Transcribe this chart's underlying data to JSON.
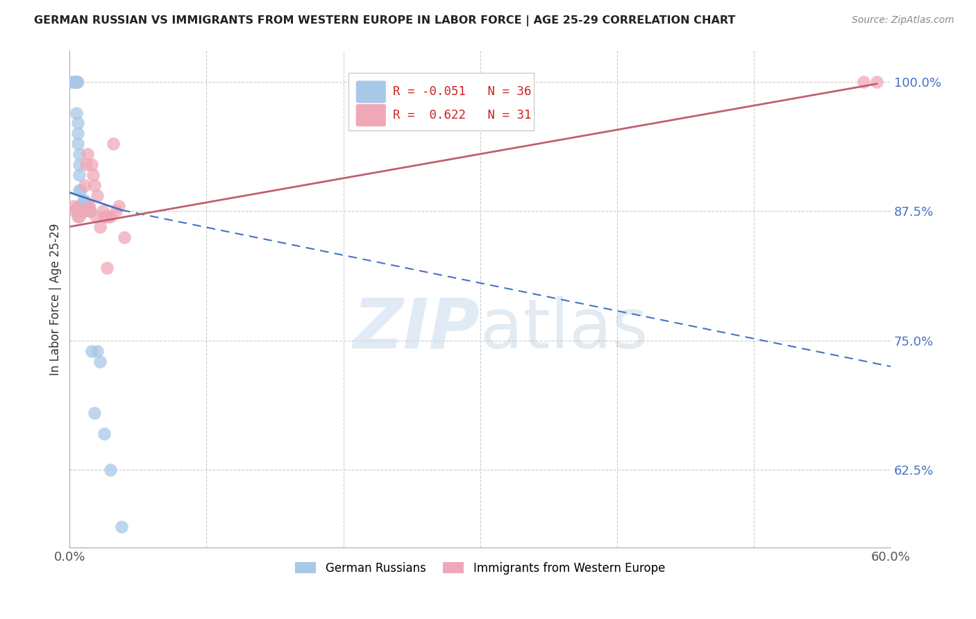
{
  "title": "GERMAN RUSSIAN VS IMMIGRANTS FROM WESTERN EUROPE IN LABOR FORCE | AGE 25-29 CORRELATION CHART",
  "source": "Source: ZipAtlas.com",
  "ylabel": "In Labor Force | Age 25-29",
  "xlim": [
    0.0,
    0.6
  ],
  "ylim": [
    0.55,
    1.03
  ],
  "yticks": [
    0.625,
    0.75,
    0.875,
    1.0
  ],
  "ytick_labels": [
    "62.5%",
    "75.0%",
    "87.5%",
    "100.0%"
  ],
  "xticks": [
    0.0,
    0.1,
    0.2,
    0.3,
    0.4,
    0.5,
    0.6
  ],
  "blue_R": -0.051,
  "blue_N": 36,
  "pink_R": 0.622,
  "pink_N": 31,
  "blue_color": "#A8C8E8",
  "pink_color": "#F0A8B8",
  "blue_line_color": "#4472C4",
  "pink_line_color": "#C06070",
  "legend_label_blue": "German Russians",
  "legend_label_pink": "Immigrants from Western Europe",
  "watermark_zip": "ZIP",
  "watermark_atlas": "atlas",
  "blue_points_x": [
    0.002,
    0.003,
    0.004,
    0.004,
    0.005,
    0.005,
    0.005,
    0.006,
    0.006,
    0.006,
    0.006,
    0.007,
    0.007,
    0.007,
    0.007,
    0.007,
    0.008,
    0.008,
    0.008,
    0.009,
    0.009,
    0.01,
    0.01,
    0.011,
    0.011,
    0.012,
    0.013,
    0.014,
    0.015,
    0.016,
    0.018,
    0.02,
    0.022,
    0.025,
    0.03,
    0.038
  ],
  "blue_points_y": [
    1.0,
    1.0,
    1.0,
    1.0,
    1.0,
    1.0,
    0.97,
    1.0,
    0.96,
    0.95,
    0.94,
    0.93,
    0.92,
    0.91,
    0.895,
    0.88,
    0.895,
    0.88,
    0.875,
    0.88,
    0.875,
    0.885,
    0.88,
    0.885,
    0.875,
    0.878,
    0.878,
    0.88,
    0.875,
    0.74,
    0.68,
    0.74,
    0.73,
    0.66,
    0.625,
    0.57
  ],
  "pink_points_x": [
    0.003,
    0.004,
    0.005,
    0.006,
    0.007,
    0.008,
    0.009,
    0.01,
    0.011,
    0.012,
    0.013,
    0.014,
    0.015,
    0.016,
    0.017,
    0.018,
    0.019,
    0.02,
    0.022,
    0.024,
    0.025,
    0.026,
    0.027,
    0.028,
    0.03,
    0.032,
    0.034,
    0.036,
    0.04,
    0.58,
    0.59
  ],
  "pink_points_y": [
    0.88,
    0.875,
    0.878,
    0.87,
    0.87,
    0.875,
    0.875,
    0.875,
    0.9,
    0.92,
    0.93,
    0.88,
    0.875,
    0.92,
    0.91,
    0.9,
    0.87,
    0.89,
    0.86,
    0.875,
    0.87,
    0.87,
    0.82,
    0.87,
    0.87,
    0.94,
    0.875,
    0.88,
    0.85,
    1.0,
    1.0
  ],
  "blue_line_x0": 0.0,
  "blue_line_x1": 0.038,
  "blue_line_x2": 0.6,
  "blue_line_y0": 0.893,
  "blue_line_y1": 0.876,
  "blue_line_y2": 0.725,
  "pink_line_x0": 0.0,
  "pink_line_x1": 0.59,
  "pink_line_y0": 0.86,
  "pink_line_y1": 0.998
}
